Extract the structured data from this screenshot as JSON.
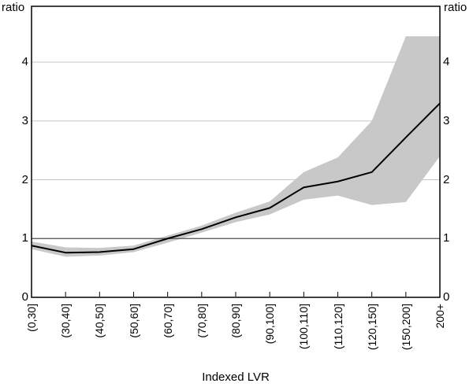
{
  "chart_data": {
    "type": "line",
    "title": "",
    "x_axis_label": "Indexed LVR",
    "y_axis_label_left": "ratio",
    "y_axis_label_right": "ratio",
    "categories": [
      "(0,30]",
      "(30,40]",
      "(40,50]",
      "(50,60]",
      "(60,70]",
      "(70,80]",
      "(80,90]",
      "(90,100]",
      "(100,110]",
      "(110,120]",
      "(120,150]",
      "(150,200]",
      "200+"
    ],
    "series": [
      {
        "name": "ratio",
        "type": "line",
        "values": [
          0.88,
          0.76,
          0.77,
          0.82,
          1.0,
          1.16,
          1.36,
          1.52,
          1.87,
          1.97,
          2.13,
          2.72,
          3.3
        ]
      },
      {
        "name": "band-upper",
        "type": "band-edge",
        "values": [
          0.95,
          0.85,
          0.84,
          0.88,
          1.05,
          1.22,
          1.44,
          1.63,
          2.13,
          2.38,
          3.0,
          4.44,
          4.44
        ]
      },
      {
        "name": "band-lower",
        "type": "band-edge",
        "values": [
          0.82,
          0.69,
          0.71,
          0.77,
          0.93,
          1.1,
          1.28,
          1.41,
          1.66,
          1.73,
          1.57,
          1.62,
          2.4
        ]
      }
    ],
    "yticks": [
      0,
      1,
      2,
      3,
      4
    ],
    "ylim": [
      0,
      4.95
    ],
    "reference_line_y": 1,
    "grid": "horizontal",
    "legend": "none",
    "colors": {
      "line": "#000000",
      "band": "#c8c8c8",
      "gridline": "#c5c5c5",
      "reference_line": "#4d4d4d",
      "frame": "#000000",
      "tick": "#000000",
      "text": "#000000",
      "background": "#ffffff"
    }
  }
}
